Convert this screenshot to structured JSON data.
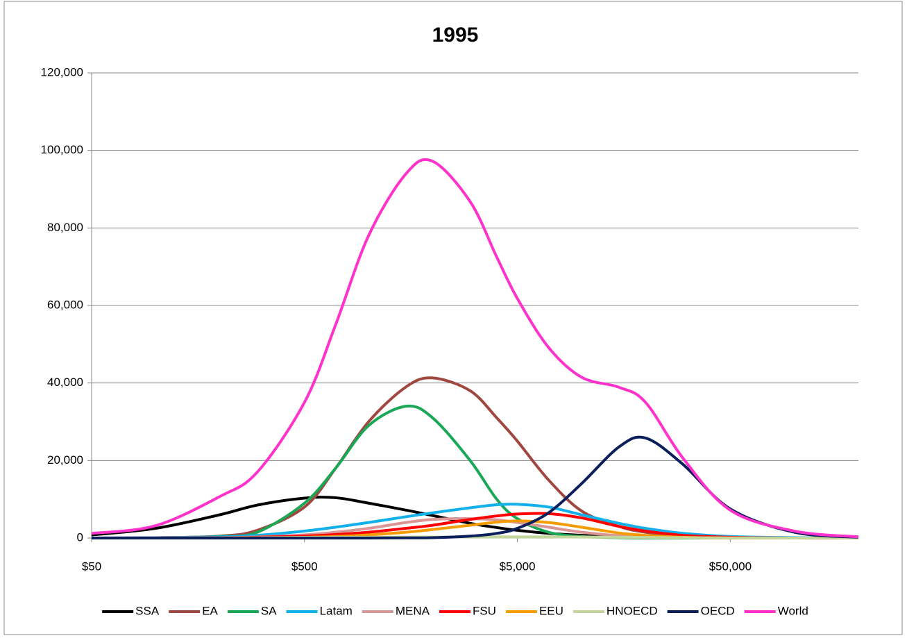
{
  "chart_data": {
    "type": "line",
    "title": "1995",
    "x": [
      50,
      100,
      200,
      300,
      500,
      700,
      1000,
      1500,
      2000,
      3000,
      4000,
      5000,
      7000,
      10000,
      15000,
      20000,
      30000,
      50000,
      100000,
      200000
    ],
    "xscale": "log",
    "xlim": [
      50,
      200000
    ],
    "xticks": [
      {
        "value": 50,
        "label": "$50"
      },
      {
        "value": 500,
        "label": "$500"
      },
      {
        "value": 5000,
        "label": "$5,000"
      },
      {
        "value": 50000,
        "label": "$50,000"
      }
    ],
    "ylim": [
      0,
      120000
    ],
    "yticks": [
      0,
      {
        "value": 20000,
        "label": "20,000"
      },
      {
        "value": 40000,
        "label": "40,000"
      },
      {
        "value": 60000,
        "label": "60,000"
      },
      {
        "value": 80000,
        "label": "80,000"
      },
      {
        "value": 100000,
        "label": "100,000"
      },
      {
        "value": 120000,
        "label": "120,000"
      }
    ],
    "grid": true,
    "legend": "bottom",
    "series": [
      {
        "name": "SSA",
        "color": "#000000",
        "values": [
          800,
          2500,
          6000,
          8500,
          10300,
          10400,
          9000,
          7200,
          5800,
          3800,
          2700,
          2000,
          1200,
          700,
          400,
          200,
          100,
          50,
          0,
          0
        ]
      },
      {
        "name": "EA",
        "color": "#a0473f",
        "values": [
          0,
          100,
          500,
          2000,
          8000,
          18000,
          30000,
          39000,
          41300,
          38000,
          31000,
          25000,
          15000,
          7000,
          3000,
          1500,
          600,
          200,
          50,
          0
        ]
      },
      {
        "name": "SA",
        "color": "#1aa856",
        "values": [
          0,
          50,
          400,
          1500,
          9000,
          18000,
          29000,
          34000,
          31000,
          20000,
          10000,
          5000,
          1500,
          400,
          100,
          0,
          0,
          0,
          0,
          0
        ]
      },
      {
        "name": "Latam",
        "color": "#12b0ea",
        "values": [
          0,
          100,
          300,
          700,
          1800,
          2800,
          4000,
          5500,
          6500,
          7800,
          8600,
          8700,
          8000,
          6000,
          3800,
          2500,
          1200,
          400,
          100,
          0
        ]
      },
      {
        "name": "MENA",
        "color": "#d99694",
        "values": [
          0,
          50,
          100,
          300,
          800,
          1500,
          2500,
          4000,
          4800,
          5000,
          4700,
          4000,
          2800,
          1500,
          600,
          300,
          100,
          0,
          0,
          0
        ]
      },
      {
        "name": "FSU",
        "color": "#ff0000",
        "values": [
          0,
          0,
          100,
          200,
          500,
          900,
          1500,
          2500,
          3300,
          4800,
          5700,
          6200,
          6300,
          5200,
          3000,
          1800,
          700,
          200,
          0,
          0
        ]
      },
      {
        "name": "EEU",
        "color": "#f59d00",
        "values": [
          0,
          0,
          0,
          50,
          200,
          400,
          800,
          1500,
          2200,
          3300,
          4100,
          4400,
          4000,
          2800,
          1300,
          700,
          200,
          0,
          0,
          0
        ]
      },
      {
        "name": "HNOECD",
        "color": "#c3d69b",
        "values": [
          0,
          0,
          50,
          100,
          150,
          200,
          200,
          250,
          250,
          300,
          300,
          300,
          300,
          250,
          200,
          150,
          100,
          50,
          0,
          0
        ]
      },
      {
        "name": "OECD",
        "color": "#0b1f5c",
        "values": [
          0,
          0,
          0,
          0,
          0,
          0,
          0,
          50,
          100,
          500,
          1200,
          2500,
          6500,
          14000,
          23500,
          25800,
          19000,
          7500,
          1500,
          200
        ]
      },
      {
        "name": "World",
        "color": "#ff33cc",
        "values": [
          1200,
          3200,
          10700,
          17000,
          35000,
          55000,
          78000,
          94000,
          97200,
          86800,
          72500,
          61800,
          49200,
          41500,
          38900,
          35000,
          20600,
          7200,
          1800,
          300
        ]
      }
    ]
  }
}
